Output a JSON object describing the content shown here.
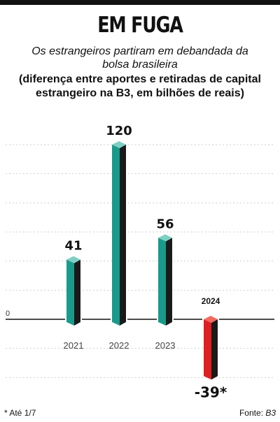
{
  "header": {
    "title": "EM FUGA",
    "subtitle": "Os estrangeiros partiram em debandada da bolsa brasileira",
    "description": "(diferença entre aportes e retiradas de capital estrangeiro na B3, em bilhões de reais)"
  },
  "footer": {
    "footnote": "* Até 1/7",
    "source_label": "Fonte:",
    "source_name": "B3"
  },
  "chart_data": {
    "type": "bar",
    "categories": [
      "2021",
      "2022",
      "2023",
      "2024"
    ],
    "values": [
      41,
      120,
      56,
      -39
    ],
    "data_labels": [
      "41",
      "120",
      "56",
      "-39*"
    ],
    "zero_label": "0",
    "ylim": [
      -50,
      140
    ],
    "grid": true,
    "colors": {
      "positive_front": "#1a9a8a",
      "positive_top": "#7fcfc4",
      "negative_front": "#e02020",
      "negative_top": "#f26a5e",
      "side": "#1a1a1a"
    }
  }
}
